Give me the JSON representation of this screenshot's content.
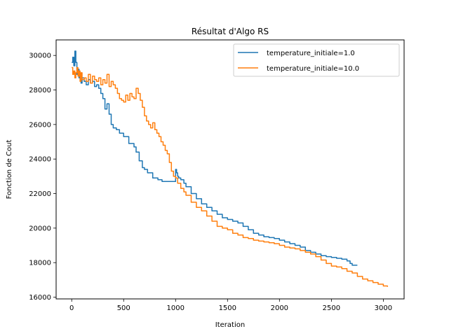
{
  "chart_data": {
    "type": "line",
    "title": "Résultat d'Algo RS",
    "xlabel": "Iteration",
    "ylabel": "Fonction de Cout",
    "xlim": [
      -150,
      3200
    ],
    "ylim": [
      15900,
      30900
    ],
    "xticks": [
      0,
      500,
      1000,
      1500,
      2000,
      2500,
      3000
    ],
    "yticks": [
      16000,
      18000,
      20000,
      22000,
      24000,
      26000,
      28000,
      30000
    ],
    "grid": false,
    "legend_position": "upper right",
    "series": [
      {
        "name": "temperature_initiale=1.0",
        "color": "#1f77b4",
        "x": [
          0,
          10,
          20,
          30,
          40,
          50,
          60,
          70,
          80,
          90,
          100,
          120,
          140,
          160,
          180,
          200,
          220,
          240,
          260,
          280,
          300,
          320,
          340,
          360,
          380,
          400,
          430,
          460,
          500,
          550,
          600,
          620,
          650,
          680,
          700,
          730,
          780,
          830,
          870,
          900,
          950,
          990,
          1000,
          1010,
          1020,
          1030,
          1050,
          1080,
          1100,
          1150,
          1200,
          1250,
          1300,
          1350,
          1400,
          1450,
          1500,
          1550,
          1600,
          1650,
          1700,
          1750,
          1800,
          1850,
          1900,
          1950,
          2000,
          2050,
          2100,
          2150,
          2200,
          2250,
          2300,
          2350,
          2400,
          2450,
          2500,
          2550,
          2600,
          2650,
          2680,
          2700,
          2720,
          2750
        ],
        "y": [
          29600,
          29900,
          29400,
          30250,
          29600,
          28900,
          29200,
          28700,
          28900,
          28400,
          28700,
          28500,
          28300,
          28600,
          28400,
          28500,
          28200,
          28300,
          28100,
          27800,
          27500,
          26900,
          27200,
          26600,
          26000,
          25800,
          25700,
          25500,
          25300,
          24900,
          24700,
          24400,
          23900,
          23500,
          23400,
          23200,
          22900,
          22800,
          22700,
          22700,
          22700,
          22700,
          23400,
          23200,
          23000,
          22900,
          22800,
          22600,
          22400,
          22000,
          21700,
          21400,
          21200,
          21000,
          20800,
          20600,
          20500,
          20400,
          20300,
          20100,
          19900,
          19700,
          19600,
          19500,
          19450,
          19400,
          19300,
          19200,
          19100,
          19000,
          18900,
          18700,
          18600,
          18500,
          18400,
          18350,
          18300,
          18250,
          18200,
          18100,
          17950,
          17850,
          17850,
          17850
        ]
      },
      {
        "name": "temperature_initiale=10.0",
        "color": "#ff7f0e",
        "x": [
          0,
          10,
          20,
          30,
          40,
          50,
          60,
          70,
          80,
          90,
          100,
          120,
          140,
          160,
          180,
          200,
          220,
          240,
          260,
          280,
          300,
          320,
          340,
          360,
          380,
          400,
          420,
          440,
          460,
          480,
          500,
          520,
          540,
          560,
          580,
          600,
          620,
          640,
          660,
          680,
          700,
          720,
          740,
          760,
          780,
          800,
          820,
          840,
          860,
          880,
          900,
          920,
          940,
          960,
          980,
          1000,
          1020,
          1050,
          1080,
          1100,
          1150,
          1200,
          1250,
          1300,
          1350,
          1400,
          1450,
          1500,
          1550,
          1600,
          1650,
          1700,
          1750,
          1800,
          1850,
          1900,
          1950,
          2000,
          2050,
          2100,
          2150,
          2200,
          2250,
          2300,
          2350,
          2400,
          2450,
          2500,
          2550,
          2600,
          2650,
          2700,
          2750,
          2800,
          2850,
          2900,
          2950,
          3000,
          3040
        ],
        "y": [
          29300,
          28900,
          29100,
          28700,
          29000,
          29300,
          28800,
          29100,
          28500,
          29000,
          28600,
          28700,
          28500,
          28900,
          28400,
          28800,
          28600,
          28500,
          28700,
          28300,
          28600,
          28400,
          28900,
          28200,
          28500,
          28300,
          28100,
          27800,
          27500,
          27400,
          27300,
          27700,
          27400,
          27800,
          27600,
          27500,
          28100,
          27800,
          27400,
          27000,
          26500,
          26200,
          26000,
          25800,
          26100,
          25700,
          25500,
          25300,
          25000,
          24800,
          24500,
          24300,
          23800,
          23300,
          23000,
          22900,
          22600,
          22300,
          22100,
          21900,
          21500,
          21200,
          21000,
          20700,
          20400,
          20100,
          20000,
          19900,
          19700,
          19600,
          19450,
          19400,
          19300,
          19250,
          19200,
          19150,
          19100,
          19000,
          18900,
          18850,
          18800,
          18700,
          18600,
          18500,
          18350,
          18150,
          17950,
          17800,
          17750,
          17650,
          17500,
          17400,
          17200,
          17050,
          16950,
          16850,
          16750,
          16650,
          16600
        ]
      }
    ]
  }
}
